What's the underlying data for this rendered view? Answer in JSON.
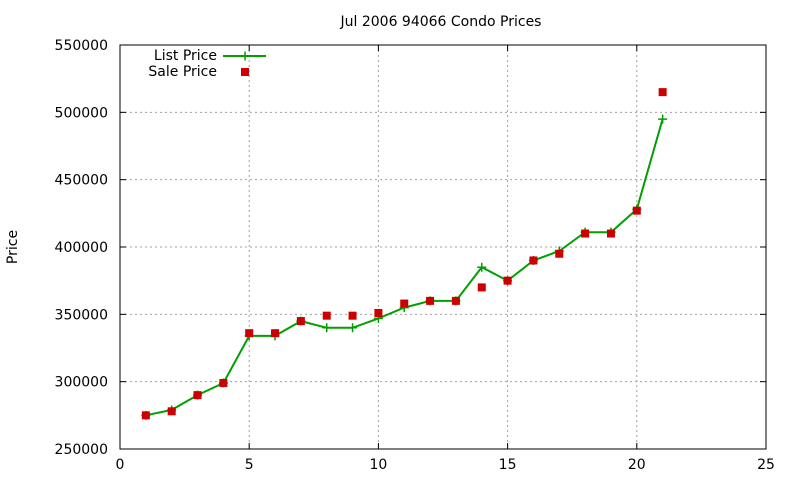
{
  "chart_data": {
    "type": "line",
    "title": "Jul 2006 94066 Condo Prices",
    "xlabel": "",
    "ylabel": "Price",
    "xlim": [
      0,
      25
    ],
    "ylim": [
      250000,
      550000
    ],
    "xticks": [
      0,
      5,
      10,
      15,
      20,
      25
    ],
    "yticks": [
      250000,
      300000,
      350000,
      400000,
      450000,
      500000,
      550000
    ],
    "grid": true,
    "legend_position": "top-left",
    "series": [
      {
        "name": "List Price",
        "style": "line+points",
        "color": "#00a000",
        "x": [
          1,
          2,
          3,
          4,
          5,
          6,
          7,
          8,
          9,
          10,
          11,
          12,
          13,
          14,
          15,
          16,
          17,
          18,
          19,
          20,
          21
        ],
        "y": [
          275000,
          279000,
          290000,
          299000,
          334000,
          334000,
          345000,
          340000,
          340000,
          347000,
          355000,
          360000,
          360000,
          385000,
          375000,
          390000,
          397000,
          411000,
          411000,
          428000,
          495000
        ]
      },
      {
        "name": "Sale Price",
        "style": "points",
        "color": "#cc0000",
        "x": [
          1,
          2,
          3,
          4,
          5,
          6,
          7,
          8,
          9,
          10,
          11,
          12,
          13,
          14,
          15,
          16,
          17,
          18,
          19,
          20,
          21
        ],
        "y": [
          275000,
          278000,
          290000,
          299000,
          336000,
          336000,
          345000,
          349000,
          349000,
          351000,
          358000,
          360000,
          360000,
          370000,
          375000,
          390000,
          395000,
          410000,
          410000,
          427000,
          515000
        ]
      }
    ]
  }
}
